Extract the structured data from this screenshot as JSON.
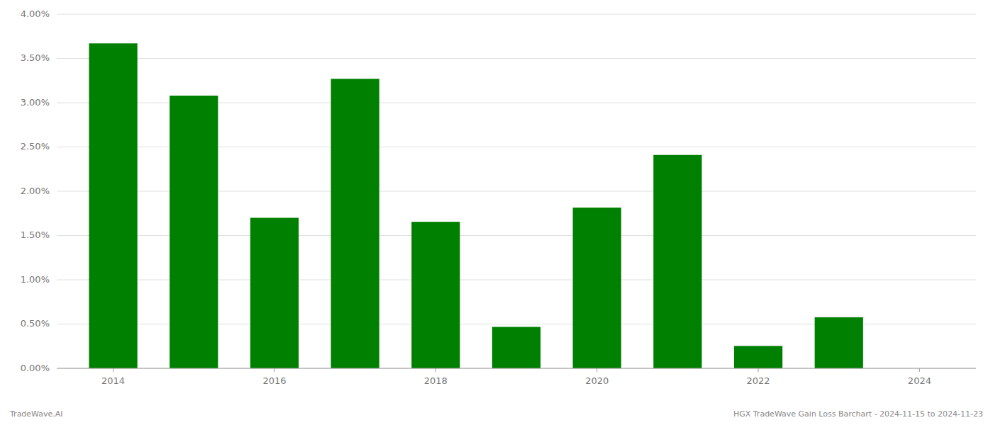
{
  "chart_data": {
    "type": "bar",
    "x": [
      2014,
      2015,
      2016,
      2017,
      2018,
      2019,
      2020,
      2021,
      2022,
      2023
    ],
    "values": [
      0.0367,
      0.0308,
      0.017,
      0.0327,
      0.01655,
      0.00468,
      0.01815,
      0.0241,
      0.00253,
      0.00577
    ],
    "color": "#008000",
    "xlim": [
      2013.3,
      2024.7
    ],
    "xticks": [
      2014,
      2016,
      2018,
      2020,
      2022,
      2024
    ],
    "ylim": [
      0.0,
      0.04
    ],
    "yticks": [
      {
        "value": 0.0,
        "label": "0.00%"
      },
      {
        "value": 0.005,
        "label": "0.50%"
      },
      {
        "value": 0.01,
        "label": "1.00%"
      },
      {
        "value": 0.015,
        "label": "1.50%"
      },
      {
        "value": 0.02,
        "label": "2.00%"
      },
      {
        "value": 0.025,
        "label": "2.50%"
      },
      {
        "value": 0.03,
        "label": "3.00%"
      },
      {
        "value": 0.035,
        "label": "3.50%"
      },
      {
        "value": 0.04,
        "label": "4.00%"
      }
    ],
    "grid": true,
    "annotations": [
      "TradeWave.AI",
      "HGX TradeWave Gain Loss Barchart - 2024-11-15 to 2024-11-23"
    ]
  }
}
